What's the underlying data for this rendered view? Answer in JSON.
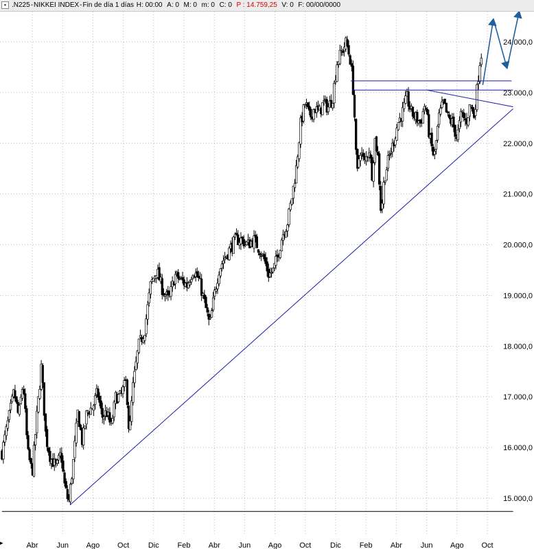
{
  "header": {
    "symbol": ".N225",
    "sep1": " - ",
    "name": "NIKKEI INDEX",
    "sep2": " - ",
    "period": "Fin de día 1 días",
    "h": "H: 00:00",
    "a": "A: 0",
    "m": "M: 0",
    "mm": "m: 0",
    "c": "C: 0",
    "p": "P : 14.759,25",
    "v": "V: 0",
    "f": "F: 00/00/0000"
  },
  "chart_data": {
    "type": "candlestick",
    "y_range": [
      14600,
      24800
    ],
    "y_ticks": [
      {
        "value": 15000,
        "label": "15.000,0"
      },
      {
        "value": 16000,
        "label": "16.000,0"
      },
      {
        "value": 17000,
        "label": "17.000,0"
      },
      {
        "value": 18000,
        "label": "18.000,0"
      },
      {
        "value": 19000,
        "label": "19.000,0"
      },
      {
        "value": 20000,
        "label": "20.000,0"
      },
      {
        "value": 21000,
        "label": "21.000,0"
      },
      {
        "value": 22000,
        "label": "22.000,0"
      },
      {
        "value": 23000,
        "label": "23.000,0"
      },
      {
        "value": 24000,
        "label": "24.000,0"
      }
    ],
    "x_range": [
      0,
      36.5
    ],
    "x_ticks": [
      {
        "pos": 2,
        "label": "Abr"
      },
      {
        "pos": 4,
        "label": "Jun"
      },
      {
        "pos": 6,
        "label": "Ago"
      },
      {
        "pos": 8,
        "label": "Oct"
      },
      {
        "pos": 10,
        "label": "Dic"
      },
      {
        "pos": 12,
        "label": "Feb"
      },
      {
        "pos": 14,
        "label": "Abr"
      },
      {
        "pos": 16,
        "label": "Jun"
      },
      {
        "pos": 18,
        "label": "Ago"
      },
      {
        "pos": 20,
        "label": "Oct"
      },
      {
        "pos": 22,
        "label": "Dic"
      },
      {
        "pos": 24,
        "label": "Feb"
      },
      {
        "pos": 26,
        "label": "Abr"
      },
      {
        "pos": 28,
        "label": "Jun"
      },
      {
        "pos": 30,
        "label": "Ago"
      },
      {
        "pos": 32,
        "label": "Oct"
      }
    ],
    "grid": true,
    "price_path": [
      [
        0.0,
        15900
      ],
      [
        0.4,
        16500
      ],
      [
        0.8,
        17100
      ],
      [
        1.1,
        16600
      ],
      [
        1.4,
        17300
      ],
      [
        1.7,
        15900
      ],
      [
        2.0,
        15500
      ],
      [
        2.3,
        16600
      ],
      [
        2.6,
        17600
      ],
      [
        2.9,
        16200
      ],
      [
        3.2,
        15800
      ],
      [
        3.6,
        15600
      ],
      [
        3.9,
        15900
      ],
      [
        4.1,
        15300
      ],
      [
        4.4,
        14900
      ],
      [
        4.7,
        15700
      ],
      [
        5.0,
        16700
      ],
      [
        5.3,
        16100
      ],
      [
        5.6,
        16700
      ],
      [
        6.0,
        16800
      ],
      [
        6.3,
        17100
      ],
      [
        6.6,
        16600
      ],
      [
        6.9,
        16700
      ],
      [
        7.2,
        16400
      ],
      [
        7.5,
        17000
      ],
      [
        7.8,
        17000
      ],
      [
        8.2,
        17300
      ],
      [
        8.4,
        16200
      ],
      [
        8.6,
        17100
      ],
      [
        9.0,
        18000
      ],
      [
        9.4,
        18300
      ],
      [
        9.8,
        19200
      ],
      [
        10.2,
        19500
      ],
      [
        10.6,
        19100
      ],
      [
        11.0,
        18900
      ],
      [
        11.4,
        19400
      ],
      [
        11.8,
        19300
      ],
      [
        12.2,
        19200
      ],
      [
        12.6,
        19500
      ],
      [
        13.0,
        19300
      ],
      [
        13.4,
        18800
      ],
      [
        13.7,
        18400
      ],
      [
        14.0,
        19000
      ],
      [
        14.3,
        19500
      ],
      [
        14.6,
        19700
      ],
      [
        15.0,
        19900
      ],
      [
        15.4,
        20100
      ],
      [
        15.8,
        20100
      ],
      [
        16.2,
        20000
      ],
      [
        16.6,
        20100
      ],
      [
        17.0,
        19900
      ],
      [
        17.3,
        19700
      ],
      [
        17.6,
        19400
      ],
      [
        17.9,
        19500
      ],
      [
        18.2,
        19800
      ],
      [
        18.5,
        20200
      ],
      [
        18.8,
        20400
      ],
      [
        19.1,
        20900
      ],
      [
        19.4,
        21500
      ],
      [
        19.7,
        22400
      ],
      [
        20.0,
        22800
      ],
      [
        20.3,
        22500
      ],
      [
        20.6,
        22700
      ],
      [
        20.9,
        22600
      ],
      [
        21.2,
        22800
      ],
      [
        21.5,
        22700
      ],
      [
        21.8,
        22900
      ],
      [
        22.1,
        23600
      ],
      [
        22.4,
        23800
      ],
      [
        22.7,
        24000
      ],
      [
        23.0,
        23600
      ],
      [
        23.2,
        22900
      ],
      [
        23.4,
        21300
      ],
      [
        23.6,
        21900
      ],
      [
        23.9,
        21600
      ],
      [
        24.2,
        21900
      ],
      [
        24.4,
        21400
      ],
      [
        24.6,
        22100
      ],
      [
        24.8,
        21700
      ],
      [
        25.0,
        20600
      ],
      [
        25.2,
        21300
      ],
      [
        25.5,
        21700
      ],
      [
        25.8,
        22000
      ],
      [
        26.1,
        22400
      ],
      [
        26.4,
        22600
      ],
      [
        26.7,
        22900
      ],
      [
        27.0,
        22600
      ],
      [
        27.3,
        22500
      ],
      [
        27.6,
        22400
      ],
      [
        27.9,
        22800
      ],
      [
        28.2,
        22100
      ],
      [
        28.5,
        21700
      ],
      [
        28.8,
        22500
      ],
      [
        29.1,
        22800
      ],
      [
        29.4,
        22500
      ],
      [
        29.7,
        22400
      ],
      [
        30.0,
        22100
      ],
      [
        30.3,
        22600
      ],
      [
        30.6,
        22400
      ],
      [
        30.9,
        22800
      ],
      [
        31.1,
        22500
      ],
      [
        31.3,
        23000
      ],
      [
        31.5,
        23600
      ],
      [
        31.7,
        23900
      ]
    ],
    "trendlines": [
      {
        "kind": "support-uptrend",
        "from": [
          4.5,
          14870
        ],
        "to": [
          33.7,
          22680
        ]
      },
      {
        "kind": "resistance-downtrend",
        "from": [
          28.0,
          23050
        ],
        "to": [
          33.7,
          22720
        ]
      },
      {
        "kind": "resistance-horizontal",
        "from": [
          23.1,
          23050
        ],
        "to": [
          33.7,
          23050
        ]
      },
      {
        "kind": "resistance-horizontal",
        "from": [
          23.0,
          23230
        ],
        "to": [
          33.6,
          23230
        ]
      },
      {
        "kind": "baseline-horizontal",
        "from": [
          0.0,
          14740
        ],
        "to": [
          33.7,
          14740
        ]
      }
    ],
    "projection_arrows": [
      [
        [
          31.7,
          23150
        ],
        [
          32.4,
          24450
        ],
        [
          33.3,
          23480
        ],
        [
          34.1,
          24600
        ]
      ]
    ]
  }
}
